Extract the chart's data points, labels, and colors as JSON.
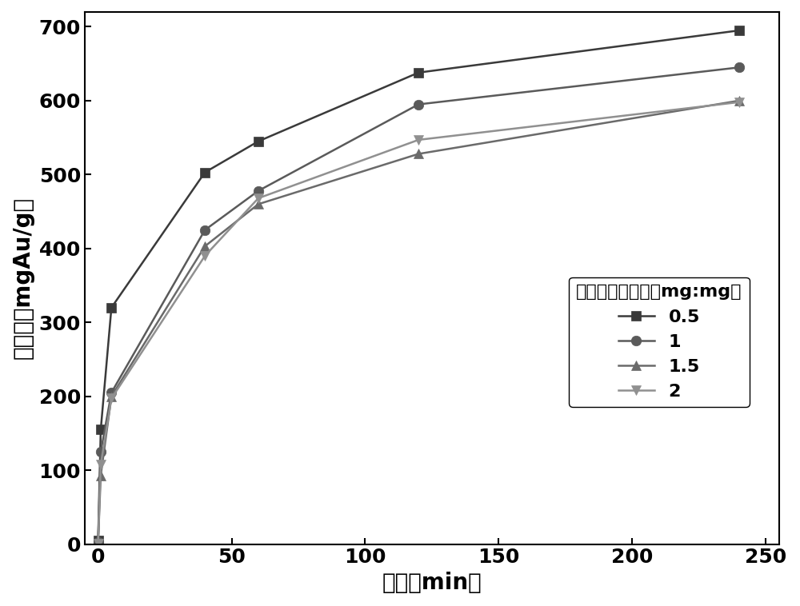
{
  "title": "",
  "xlabel": "时间（min）",
  "ylabel": "吸附量（mgAu/g）",
  "xlim": [
    -5,
    255
  ],
  "ylim": [
    0,
    720
  ],
  "xticks": [
    0,
    50,
    100,
    150,
    200,
    250
  ],
  "yticks": [
    0,
    100,
    200,
    300,
    400,
    500,
    600,
    700
  ],
  "series": [
    {
      "label": "0.5",
      "x": [
        0,
        1,
        5,
        40,
        60,
        120,
        240
      ],
      "y": [
        5,
        155,
        320,
        503,
        545,
        638,
        695
      ],
      "color": "#3a3a3a",
      "marker": "s",
      "markersize": 9,
      "linewidth": 1.8
    },
    {
      "label": "1",
      "x": [
        0,
        1,
        5,
        40,
        60,
        120,
        240
      ],
      "y": [
        3,
        125,
        205,
        425,
        478,
        595,
        645
      ],
      "color": "#5a5a5a",
      "marker": "o",
      "markersize": 9,
      "linewidth": 1.8
    },
    {
      "label": "1.5",
      "x": [
        0,
        1,
        5,
        40,
        60,
        120,
        240
      ],
      "y": [
        2,
        93,
        200,
        403,
        460,
        528,
        600
      ],
      "color": "#6a6a6a",
      "marker": "^",
      "markersize": 9,
      "linewidth": 1.8
    },
    {
      "label": "2",
      "x": [
        0,
        1,
        5,
        40,
        60,
        120,
        240
      ],
      "y": [
        1,
        108,
        197,
        390,
        468,
        547,
        598
      ],
      "color": "#909090",
      "marker": "v",
      "markersize": 9,
      "linewidth": 1.8
    }
  ],
  "legend_title": "活性炭：单质硫（mg:mg）",
  "background_color": "#ffffff",
  "axis_label_fontsize": 20,
  "tick_fontsize": 18,
  "legend_fontsize": 16
}
